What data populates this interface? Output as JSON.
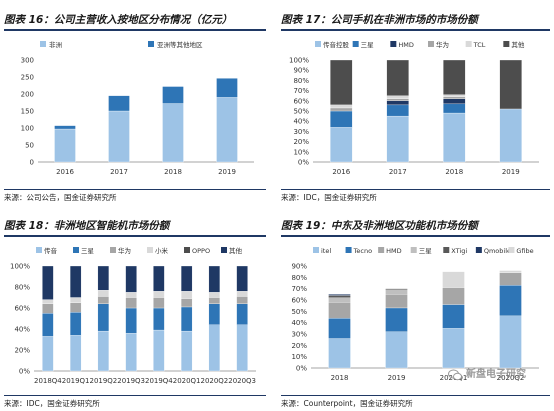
{
  "panels": [
    {
      "title": "图表 16：公司主营收入按地区分布情况（亿元）",
      "source": "来源：公司公告，国金证券研究所",
      "chart_data": {
        "type": "bar",
        "stacked": true,
        "categories": [
          "2016",
          "2017",
          "2018",
          "2019"
        ],
        "series": [
          {
            "name": "非洲",
            "color": "#9dc3e6",
            "values": [
              97,
              150,
              172,
              190
            ]
          },
          {
            "name": "亚洲等其他地区",
            "color": "#2e75b6",
            "values": [
              10,
              45,
              50,
              56
            ]
          }
        ],
        "ylim": [
          0,
          300
        ],
        "yticks": [
          0,
          50,
          100,
          150,
          200,
          250,
          300
        ],
        "legend": "top-left",
        "grid": false
      }
    },
    {
      "title": "图表 17：公司手机在非洲市场的市场份额",
      "source": "来源：IDC，国金证券研究所",
      "chart_data": {
        "type": "bar",
        "stacked": true,
        "categories": [
          "2016",
          "2017",
          "2018",
          "2019"
        ],
        "series": [
          {
            "name": "传音控股",
            "color": "#9dc3e6",
            "values": [
              34,
              45,
              48,
              52
            ]
          },
          {
            "name": "三星",
            "color": "#2e75b6",
            "values": [
              16,
              11,
              9,
              0
            ]
          },
          {
            "name": "HMD",
            "color": "#1f3864",
            "values": [
              0,
              4,
              5,
              0
            ]
          },
          {
            "name": "华为",
            "color": "#a6a6a6",
            "values": [
              3,
              2,
              2,
              0
            ]
          },
          {
            "name": "TCL",
            "color": "#d9d9d9",
            "values": [
              3,
              3,
              2,
              0
            ]
          },
          {
            "name": "其他",
            "color": "#4d4d4d",
            "values": [
              44,
              35,
              34,
              48
            ]
          }
        ],
        "ylim": [
          0,
          100
        ],
        "yticks": [
          "0%",
          "10%",
          "20%",
          "30%",
          "40%",
          "50%",
          "60%",
          "70%",
          "80%",
          "90%",
          "100%"
        ],
        "legend": "top",
        "grid": false
      }
    },
    {
      "title": "图表 18：非洲地区智能机市场份额",
      "source": "来源：IDC，国金证券研究所",
      "chart_data": {
        "type": "bar",
        "stacked": true,
        "categories": [
          "2018Q4",
          "2019Q1",
          "2019Q2",
          "2019Q3",
          "2019Q4",
          "2020Q1",
          "2020Q2",
          "2020Q3"
        ],
        "series": [
          {
            "name": "传音",
            "color": "#9dc3e6",
            "values": [
              33,
              34,
              38,
              36,
              39,
              38,
              44,
              44
            ]
          },
          {
            "name": "三星",
            "color": "#2e75b6",
            "values": [
              22,
              22,
              26,
              24,
              21,
              23,
              20,
              20
            ]
          },
          {
            "name": "华为",
            "color": "#a6a6a6",
            "values": [
              9,
              9,
              7,
              10,
              10,
              8,
              6,
              7
            ]
          },
          {
            "name": "小米",
            "color": "#d9d9d9",
            "values": [
              4,
              5,
              6,
              5,
              6,
              7,
              5,
              5
            ]
          },
          {
            "name": "OPPO",
            "color": "#4d4d4d",
            "values": [
              0,
              0,
              0,
              0,
              0,
              0,
              0,
              0
            ]
          },
          {
            "name": "其他",
            "color": "#1f3864",
            "values": [
              32,
              30,
              23,
              25,
              24,
              24,
              25,
              24
            ]
          }
        ],
        "ylim": [
          0,
          100
        ],
        "yticks": [
          "0%",
          "20%",
          "40%",
          "60%",
          "80%",
          "100%"
        ],
        "legend": "top",
        "grid": false
      }
    },
    {
      "title": "图表 19：中东及非洲地区功能机市场份额",
      "source": "来源：Counterpoint，国金证券研究所",
      "chart_data": {
        "type": "bar",
        "stacked": true,
        "categories": [
          "2018",
          "2019",
          "2020Q1",
          "2020Q2"
        ],
        "series": [
          {
            "name": "itel",
            "color": "#9dc3e6",
            "values": [
              26,
              32,
              35,
              46
            ]
          },
          {
            "name": "Tecno",
            "color": "#2e75b6",
            "values": [
              18,
              21,
              21,
              27
            ]
          },
          {
            "name": "HMD",
            "color": "#a6a6a6",
            "values": [
              14,
              12,
              15,
              11
            ]
          },
          {
            "name": "三星",
            "color": "#bfbfbf",
            "values": [
              4,
              4,
              0,
              0
            ]
          },
          {
            "name": "XTigi",
            "color": "#595959",
            "values": [
              2,
              1,
              0,
              0
            ]
          },
          {
            "name": "Qmobile",
            "color": "#1f3864",
            "values": [
              1,
              0,
              0,
              0
            ]
          },
          {
            "name": "Gfibe",
            "color": "#d9d9d9",
            "values": [
              0,
              0,
              14,
              2
            ]
          }
        ],
        "ylim": [
          0,
          90
        ],
        "yticks": [
          "0%",
          "10%",
          "20%",
          "30%",
          "40%",
          "50%",
          "60%",
          "70%",
          "80%",
          "90%"
        ],
        "legend": "top",
        "grid": false
      }
    }
  ],
  "watermark": {
    "text": "新盘电子研究",
    "icon": "wechat-icon"
  }
}
